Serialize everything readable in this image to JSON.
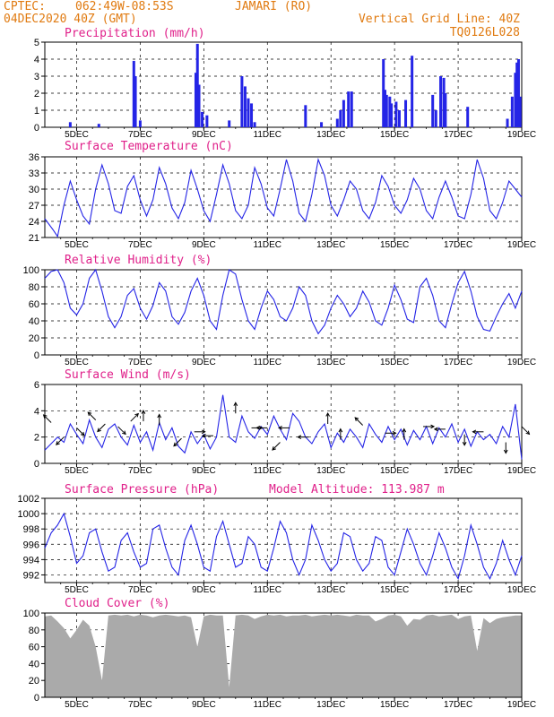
{
  "header": {
    "source": "CPTEC:",
    "coords": "062:49W-08:53S",
    "station": "JAMARI (RO)",
    "date": "04DEC2020 40Z (GMT)",
    "grid_note": "Vertical Grid Line: 40Z",
    "code": "TQ0126L028"
  },
  "x_ticks": [
    "5DEC",
    "7DEC",
    "9DEC",
    "11DEC",
    "13DEC",
    "15DEC",
    "17DEC",
    "19DEC"
  ],
  "colors": {
    "series": "#2424e6",
    "cloud": "#aaaaaa",
    "header": "#e07a10",
    "title": "#e0208a"
  },
  "chart_data": [
    {
      "type": "bar",
      "title": "Precipitation (mm/h)",
      "xlim": [
        4.0,
        19.0
      ],
      "ylim": [
        0,
        5
      ],
      "yticks": [
        "0",
        "1",
        "2",
        "3",
        "4",
        "5"
      ],
      "bars": [
        [
          4.8,
          0.3
        ],
        [
          5.7,
          0.2
        ],
        [
          6.8,
          3.9
        ],
        [
          6.85,
          3.0
        ],
        [
          7.0,
          0.4
        ],
        [
          8.75,
          3.2
        ],
        [
          8.8,
          4.9
        ],
        [
          8.85,
          2.5
        ],
        [
          8.95,
          0.9
        ],
        [
          9.1,
          0.7
        ],
        [
          9.8,
          0.4
        ],
        [
          10.2,
          3.0
        ],
        [
          10.3,
          2.4
        ],
        [
          10.4,
          1.7
        ],
        [
          10.5,
          1.4
        ],
        [
          10.6,
          0.3
        ],
        [
          12.2,
          1.3
        ],
        [
          12.7,
          0.3
        ],
        [
          13.2,
          0.5
        ],
        [
          13.3,
          1.0
        ],
        [
          13.4,
          1.6
        ],
        [
          13.55,
          2.1
        ],
        [
          13.65,
          2.1
        ],
        [
          14.65,
          4.0
        ],
        [
          14.7,
          2.2
        ],
        [
          14.75,
          1.9
        ],
        [
          14.85,
          1.8
        ],
        [
          14.9,
          1.4
        ],
        [
          15.05,
          1.5
        ],
        [
          15.15,
          1.0
        ],
        [
          15.35,
          1.6
        ],
        [
          15.55,
          4.2
        ],
        [
          16.2,
          1.9
        ],
        [
          16.3,
          1.0
        ],
        [
          16.45,
          3.0
        ],
        [
          16.55,
          2.9
        ],
        [
          16.6,
          2.0
        ],
        [
          17.3,
          1.2
        ],
        [
          18.55,
          0.5
        ],
        [
          18.7,
          1.8
        ],
        [
          18.8,
          3.2
        ],
        [
          18.85,
          3.8
        ],
        [
          18.9,
          4.0
        ],
        [
          18.95,
          1.8
        ]
      ]
    },
    {
      "type": "line",
      "title": "Surface Temperature (nC)",
      "xlim": [
        4.0,
        19.0
      ],
      "ylim": [
        21,
        36
      ],
      "yticks": [
        "21",
        "24",
        "27",
        "30",
        "33",
        "36"
      ],
      "x": [
        4.0,
        4.25,
        4.4,
        4.6,
        4.8,
        5.0,
        5.2,
        5.4,
        5.6,
        5.8,
        6.0,
        6.2,
        6.4,
        6.6,
        6.8,
        7.0,
        7.2,
        7.4,
        7.6,
        7.8,
        8.0,
        8.2,
        8.4,
        8.6,
        8.8,
        9.0,
        9.2,
        9.4,
        9.6,
        9.8,
        10.0,
        10.2,
        10.4,
        10.6,
        10.8,
        11.0,
        11.2,
        11.4,
        11.6,
        11.8,
        12.0,
        12.2,
        12.4,
        12.6,
        12.8,
        13.0,
        13.2,
        13.4,
        13.6,
        13.8,
        14.0,
        14.2,
        14.4,
        14.6,
        14.8,
        15.0,
        15.2,
        15.4,
        15.6,
        15.8,
        16.0,
        16.2,
        16.4,
        16.6,
        16.8,
        17.0,
        17.2,
        17.4,
        17.6,
        17.8,
        18.0,
        18.2,
        18.4,
        18.6,
        18.8,
        19.0
      ],
      "y": [
        24.5,
        22.5,
        21.2,
        27.0,
        31.5,
        28.0,
        25.0,
        23.5,
        30.0,
        34.5,
        31.0,
        26.0,
        25.5,
        30.5,
        32.5,
        28.0,
        25.0,
        28.0,
        34.0,
        31.0,
        26.5,
        24.5,
        27.5,
        33.5,
        30.0,
        26.0,
        24.0,
        29.0,
        34.5,
        31.0,
        26.0,
        24.5,
        27.0,
        34.0,
        31.0,
        26.5,
        25.0,
        30.0,
        35.5,
        31.5,
        25.5,
        24.0,
        29.0,
        35.5,
        32.5,
        27.0,
        25.0,
        28.0,
        31.5,
        30.0,
        26.0,
        24.5,
        27.5,
        32.5,
        30.5,
        27.0,
        25.5,
        28.0,
        32.0,
        30.0,
        26.0,
        24.5,
        28.5,
        31.5,
        28.5,
        25.0,
        24.5,
        29.0,
        35.5,
        32.0,
        26.0,
        24.5,
        27.5,
        31.5,
        30.0,
        28.5
      ]
    },
    {
      "type": "line",
      "title": "Relative Humidity (%)",
      "xlim": [
        4.0,
        19.0
      ],
      "ylim": [
        0,
        100
      ],
      "yticks": [
        "0",
        "20",
        "40",
        "60",
        "80",
        "100"
      ],
      "x": [
        4.0,
        4.2,
        4.4,
        4.6,
        4.8,
        5.0,
        5.2,
        5.4,
        5.6,
        5.8,
        6.0,
        6.2,
        6.4,
        6.6,
        6.8,
        7.0,
        7.2,
        7.4,
        7.6,
        7.8,
        8.0,
        8.2,
        8.4,
        8.6,
        8.8,
        9.0,
        9.2,
        9.4,
        9.6,
        9.8,
        10.0,
        10.2,
        10.4,
        10.6,
        10.8,
        11.0,
        11.2,
        11.4,
        11.6,
        11.8,
        12.0,
        12.2,
        12.4,
        12.6,
        12.8,
        13.0,
        13.2,
        13.4,
        13.6,
        13.8,
        14.0,
        14.2,
        14.4,
        14.6,
        14.8,
        15.0,
        15.2,
        15.4,
        15.6,
        15.8,
        16.0,
        16.2,
        16.4,
        16.6,
        16.8,
        17.0,
        17.2,
        17.4,
        17.6,
        17.8,
        18.0,
        18.2,
        18.4,
        18.6,
        18.8,
        19.0
      ],
      "y": [
        90,
        98,
        100,
        85,
        55,
        47,
        60,
        90,
        100,
        75,
        45,
        32,
        45,
        70,
        78,
        55,
        42,
        58,
        85,
        75,
        45,
        36,
        50,
        75,
        90,
        70,
        40,
        30,
        70,
        100,
        95,
        65,
        40,
        30,
        55,
        75,
        65,
        45,
        40,
        55,
        80,
        70,
        40,
        25,
        35,
        55,
        70,
        60,
        45,
        55,
        75,
        62,
        40,
        35,
        55,
        82,
        65,
        42,
        38,
        80,
        90,
        70,
        40,
        32,
        60,
        85,
        98,
        75,
        45,
        30,
        28,
        45,
        60,
        72,
        55,
        75
      ]
    },
    {
      "type": "line",
      "title": "Surface Wind (m/s)",
      "xlim": [
        4.0,
        19.0
      ],
      "ylim": [
        0,
        6
      ],
      "yticks": [
        "0",
        "2",
        "4",
        "6"
      ],
      "x": [
        4.0,
        4.2,
        4.4,
        4.6,
        4.8,
        5.0,
        5.2,
        5.4,
        5.6,
        5.8,
        6.0,
        6.2,
        6.4,
        6.6,
        6.8,
        7.0,
        7.2,
        7.4,
        7.6,
        7.8,
        8.0,
        8.2,
        8.4,
        8.6,
        8.8,
        9.0,
        9.2,
        9.4,
        9.6,
        9.8,
        10.0,
        10.2,
        10.4,
        10.6,
        10.8,
        11.0,
        11.2,
        11.4,
        11.6,
        11.8,
        12.0,
        12.2,
        12.4,
        12.6,
        12.8,
        13.0,
        13.2,
        13.4,
        13.6,
        13.8,
        14.0,
        14.2,
        14.4,
        14.6,
        14.8,
        15.0,
        15.2,
        15.4,
        15.6,
        15.8,
        16.0,
        16.2,
        16.4,
        16.6,
        16.8,
        17.0,
        17.2,
        17.4,
        17.6,
        17.8,
        18.0,
        18.2,
        18.4,
        18.6,
        18.8,
        19.0
      ],
      "y": [
        1.0,
        1.5,
        2.0,
        1.6,
        3.0,
        2.2,
        1.5,
        3.3,
        2.0,
        1.2,
        2.6,
        3.0,
        2.0,
        1.4,
        2.9,
        1.6,
        2.4,
        1.0,
        3.1,
        1.8,
        2.7,
        1.3,
        0.8,
        2.4,
        1.5,
        2.2,
        1.1,
        2.0,
        5.2,
        2.0,
        1.6,
        3.6,
        2.4,
        1.9,
        2.8,
        2.2,
        3.6,
        2.6,
        1.8,
        3.8,
        3.2,
        2.0,
        1.5,
        2.4,
        3.0,
        1.2,
        2.3,
        1.6,
        2.6,
        2.0,
        1.2,
        3.0,
        2.2,
        1.6,
        2.8,
        1.8,
        2.6,
        1.4,
        2.5,
        1.8,
        2.8,
        1.5,
        2.7,
        2.0,
        3.0,
        1.6,
        2.6,
        1.3,
        2.4,
        1.8,
        2.2,
        1.5,
        2.8,
        2.0,
        4.5,
        0.3
      ],
      "arrows": [
        [
          4.2,
          3.1,
          -1,
          -1
        ],
        [
          4.6,
          2.0,
          -1,
          1
        ],
        [
          5.0,
          2.7,
          1,
          1
        ],
        [
          5.6,
          3.3,
          -1,
          -1
        ],
        [
          5.9,
          3.0,
          -1,
          1
        ],
        [
          6.3,
          2.8,
          1,
          1
        ],
        [
          6.7,
          3.2,
          1,
          -1
        ],
        [
          7.1,
          3.2,
          0,
          -1
        ],
        [
          7.6,
          2.9,
          0,
          -1
        ],
        [
          8.3,
          1.9,
          -1,
          1
        ],
        [
          8.7,
          2.4,
          1,
          0
        ],
        [
          9.3,
          2.1,
          -1,
          0
        ],
        [
          10.0,
          3.8,
          0,
          -1
        ],
        [
          10.5,
          2.7,
          1,
          0
        ],
        [
          11.0,
          2.7,
          -1,
          0
        ],
        [
          11.4,
          1.6,
          -1,
          1
        ],
        [
          11.7,
          2.7,
          -1,
          0
        ],
        [
          12.3,
          2.0,
          -1,
          0
        ],
        [
          12.9,
          3.0,
          0,
          -1
        ],
        [
          13.3,
          1.8,
          0,
          -1
        ],
        [
          14.0,
          2.9,
          -1,
          -1
        ],
        [
          14.7,
          2.3,
          1,
          0
        ],
        [
          15.3,
          1.8,
          0,
          -1
        ],
        [
          15.9,
          2.8,
          1,
          0
        ],
        [
          16.6,
          2.6,
          -1,
          0
        ],
        [
          17.2,
          2.2,
          0,
          1
        ],
        [
          17.8,
          2.4,
          -1,
          0
        ],
        [
          18.5,
          1.6,
          0,
          1
        ],
        [
          19.0,
          2.8,
          1,
          1
        ]
      ]
    },
    {
      "type": "line",
      "title": "Surface Pressure (hPa)",
      "annotation": "Model Altitude: 113.987 m",
      "xlim": [
        4.0,
        19.0
      ],
      "ylim": [
        991,
        1002
      ],
      "yticks": [
        "992",
        "994",
        "996",
        "998",
        "1000",
        "1002"
      ],
      "x": [
        4.0,
        4.2,
        4.4,
        4.6,
        4.8,
        5.0,
        5.2,
        5.4,
        5.6,
        5.8,
        6.0,
        6.2,
        6.4,
        6.6,
        6.8,
        7.0,
        7.2,
        7.4,
        7.6,
        7.8,
        8.0,
        8.2,
        8.4,
        8.6,
        8.8,
        9.0,
        9.2,
        9.4,
        9.6,
        9.8,
        10.0,
        10.2,
        10.4,
        10.6,
        10.8,
        11.0,
        11.2,
        11.4,
        11.6,
        11.8,
        12.0,
        12.2,
        12.4,
        12.6,
        12.8,
        13.0,
        13.2,
        13.4,
        13.6,
        13.8,
        14.0,
        14.2,
        14.4,
        14.6,
        14.8,
        15.0,
        15.2,
        15.4,
        15.6,
        15.8,
        16.0,
        16.2,
        16.4,
        16.6,
        16.8,
        17.0,
        17.2,
        17.4,
        17.6,
        17.8,
        18.0,
        18.2,
        18.4,
        18.6,
        18.8,
        19.0
      ],
      "y": [
        995.5,
        997.5,
        998.5,
        1000.0,
        997.0,
        993.5,
        994.5,
        997.5,
        998.0,
        995.0,
        992.5,
        993.0,
        996.5,
        997.5,
        995.0,
        993.0,
        993.5,
        998.0,
        998.5,
        995.5,
        993.0,
        992.0,
        996.5,
        998.5,
        996.0,
        993.0,
        992.5,
        997.0,
        999.0,
        996.0,
        993.0,
        993.5,
        997.0,
        996.0,
        993.0,
        992.5,
        995.5,
        999.0,
        997.5,
        994.0,
        992.0,
        994.0,
        998.5,
        996.5,
        994.0,
        992.5,
        993.5,
        997.5,
        997.0,
        994.0,
        992.5,
        993.5,
        997.0,
        996.5,
        993.0,
        992.0,
        995.0,
        998.0,
        996.0,
        993.5,
        992.0,
        994.5,
        997.5,
        995.5,
        993.0,
        991.5,
        994.5,
        998.5,
        996.0,
        993.0,
        991.5,
        993.5,
        996.5,
        994.0,
        992.0,
        994.5
      ]
    },
    {
      "type": "area",
      "title": "Cloud Cover (%)",
      "xlim": [
        4.0,
        19.0
      ],
      "ylim": [
        0,
        100
      ],
      "yticks": [
        "0",
        "20",
        "40",
        "60",
        "80",
        "100"
      ],
      "x": [
        4.0,
        4.2,
        4.4,
        4.6,
        4.8,
        5.0,
        5.2,
        5.4,
        5.6,
        5.8,
        6.0,
        6.2,
        6.4,
        6.6,
        6.8,
        7.0,
        7.2,
        7.4,
        7.6,
        7.8,
        8.0,
        8.2,
        8.4,
        8.6,
        8.8,
        9.0,
        9.2,
        9.4,
        9.6,
        9.8,
        10.0,
        10.2,
        10.4,
        10.6,
        10.8,
        11.0,
        11.2,
        11.4,
        11.6,
        11.8,
        12.0,
        12.2,
        12.4,
        12.6,
        12.8,
        13.0,
        13.2,
        13.4,
        13.6,
        13.8,
        14.0,
        14.2,
        14.4,
        14.6,
        14.8,
        15.0,
        15.2,
        15.4,
        15.6,
        15.8,
        16.0,
        16.2,
        16.4,
        16.6,
        16.8,
        17.0,
        17.2,
        17.4,
        17.6,
        17.8,
        18.0,
        18.2,
        18.4,
        18.6,
        18.8,
        19.0
      ],
      "y": [
        96,
        97,
        90,
        82,
        70,
        80,
        92,
        85,
        60,
        20,
        97,
        98,
        97,
        98,
        96,
        98,
        97,
        95,
        97,
        98,
        97,
        96,
        97,
        95,
        60,
        96,
        98,
        97,
        97,
        12,
        97,
        98,
        97,
        93,
        96,
        98,
        97,
        98,
        96,
        97,
        97,
        98,
        96,
        97,
        98,
        97,
        98,
        97,
        96,
        98,
        97,
        97,
        90,
        93,
        97,
        98,
        96,
        85,
        93,
        92,
        97,
        98,
        96,
        97,
        98,
        93,
        96,
        97,
        55,
        94,
        88,
        93,
        95,
        96,
        97,
        97
      ]
    }
  ]
}
